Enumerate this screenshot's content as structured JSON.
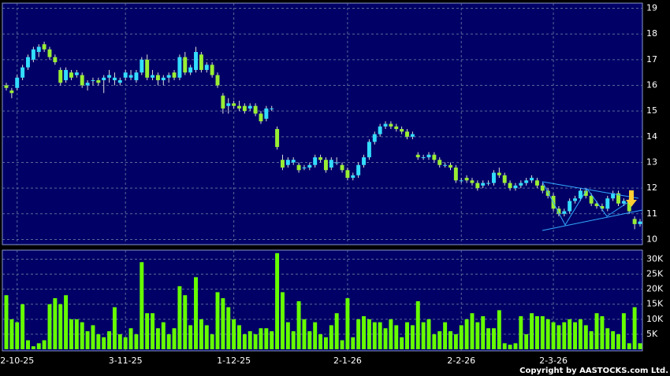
{
  "chart_data": {
    "type": "candlestick",
    "ohlc": [
      [
        16.0,
        16.1,
        15.8,
        15.9
      ],
      [
        15.8,
        15.9,
        15.5,
        15.7
      ],
      [
        15.9,
        16.4,
        15.8,
        16.3
      ],
      [
        16.3,
        16.8,
        16.2,
        16.7
      ],
      [
        16.7,
        17.2,
        16.6,
        17.1
      ],
      [
        17.0,
        17.5,
        16.9,
        17.4
      ],
      [
        17.3,
        17.6,
        17.1,
        17.5
      ],
      [
        17.6,
        17.7,
        17.3,
        17.4
      ],
      [
        17.4,
        17.5,
        17.0,
        17.1
      ],
      [
        17.1,
        17.2,
        16.8,
        16.9
      ],
      [
        16.6,
        16.7,
        16.0,
        16.1
      ],
      [
        16.2,
        16.7,
        16.1,
        16.6
      ],
      [
        16.5,
        16.6,
        16.2,
        16.3
      ],
      [
        16.4,
        16.6,
        16.3,
        16.5
      ],
      [
        16.4,
        16.5,
        15.9,
        16.0
      ],
      [
        16.0,
        16.2,
        15.8,
        16.1
      ],
      [
        16.2,
        16.3,
        16.0,
        16.2
      ],
      [
        16.2,
        16.3,
        16.0,
        16.1
      ],
      [
        16.2,
        16.4,
        15.7,
        16.3
      ],
      [
        16.3,
        16.6,
        16.1,
        16.4
      ],
      [
        16.2,
        16.5,
        16.0,
        16.3
      ],
      [
        16.1,
        16.3,
        16.0,
        16.2
      ],
      [
        16.3,
        16.6,
        16.2,
        16.5
      ],
      [
        16.3,
        16.6,
        16.2,
        16.4
      ],
      [
        16.2,
        16.6,
        16.1,
        16.5
      ],
      [
        16.5,
        17.1,
        16.4,
        17.0
      ],
      [
        17.0,
        17.2,
        16.2,
        16.3
      ],
      [
        16.3,
        16.6,
        16.2,
        16.4
      ],
      [
        16.4,
        16.5,
        16.0,
        16.2
      ],
      [
        16.2,
        16.4,
        16.0,
        16.3
      ],
      [
        16.3,
        16.5,
        16.1,
        16.4
      ],
      [
        16.5,
        16.6,
        16.2,
        16.3
      ],
      [
        16.3,
        17.2,
        16.2,
        17.1
      ],
      [
        17.1,
        17.3,
        16.4,
        16.5
      ],
      [
        16.5,
        16.8,
        16.4,
        16.7
      ],
      [
        16.6,
        17.5,
        16.5,
        17.3
      ],
      [
        17.2,
        17.3,
        16.5,
        16.6
      ],
      [
        16.6,
        16.9,
        16.5,
        16.8
      ],
      [
        16.8,
        16.9,
        16.3,
        16.4
      ],
      [
        16.4,
        16.5,
        15.9,
        16.0
      ],
      [
        15.6,
        15.7,
        14.9,
        15.1
      ],
      [
        15.2,
        15.5,
        14.9,
        15.3
      ],
      [
        15.3,
        15.4,
        15.1,
        15.2
      ],
      [
        15.2,
        15.4,
        15.0,
        15.1
      ],
      [
        15.2,
        15.3,
        14.9,
        15.0
      ],
      [
        15.1,
        15.3,
        15.0,
        15.2
      ],
      [
        15.2,
        15.3,
        14.8,
        14.9
      ],
      [
        14.9,
        15.0,
        14.5,
        14.6
      ],
      [
        14.7,
        15.2,
        14.6,
        15.1
      ],
      [
        15.1,
        15.2,
        15.0,
        15.1
      ],
      [
        14.3,
        14.4,
        13.5,
        13.6
      ],
      [
        13.1,
        13.3,
        12.7,
        12.8
      ],
      [
        12.9,
        13.2,
        12.8,
        13.1
      ],
      [
        13.0,
        13.2,
        12.9,
        13.1
      ],
      [
        12.9,
        13.0,
        12.6,
        12.7
      ],
      [
        12.8,
        12.9,
        12.7,
        12.8
      ],
      [
        12.8,
        13.0,
        12.7,
        12.9
      ],
      [
        12.9,
        13.3,
        12.8,
        13.2
      ],
      [
        13.2,
        13.3,
        13.0,
        13.1
      ],
      [
        13.1,
        13.2,
        12.6,
        12.7
      ],
      [
        12.8,
        13.2,
        12.7,
        13.1
      ],
      [
        13.0,
        13.2,
        12.9,
        13.0
      ],
      [
        12.9,
        13.0,
        12.6,
        12.7
      ],
      [
        12.7,
        12.8,
        12.3,
        12.4
      ],
      [
        12.4,
        12.6,
        12.3,
        12.5
      ],
      [
        12.5,
        13.0,
        12.4,
        12.9
      ],
      [
        12.9,
        13.3,
        12.8,
        13.2
      ],
      [
        13.2,
        13.9,
        13.1,
        13.8
      ],
      [
        13.8,
        14.2,
        13.7,
        14.1
      ],
      [
        14.1,
        14.5,
        14.0,
        14.4
      ],
      [
        14.4,
        14.6,
        14.3,
        14.5
      ],
      [
        14.5,
        14.6,
        14.3,
        14.4
      ],
      [
        14.4,
        14.5,
        14.2,
        14.3
      ],
      [
        14.3,
        14.4,
        14.1,
        14.2
      ],
      [
        14.2,
        14.3,
        13.9,
        14.0
      ],
      [
        14.0,
        14.2,
        13.9,
        14.1
      ],
      [
        13.3,
        13.4,
        13.1,
        13.2
      ],
      [
        13.2,
        13.3,
        13.1,
        13.2
      ],
      [
        13.2,
        13.4,
        13.1,
        13.3
      ],
      [
        13.3,
        13.4,
        13.0,
        13.1
      ],
      [
        13.1,
        13.2,
        12.8,
        12.9
      ],
      [
        12.9,
        13.0,
        12.8,
        12.9
      ],
      [
        12.9,
        13.0,
        12.7,
        12.8
      ],
      [
        12.8,
        12.9,
        12.2,
        12.3
      ],
      [
        12.3,
        12.4,
        12.2,
        12.3
      ],
      [
        12.4,
        12.5,
        12.2,
        12.3
      ],
      [
        12.3,
        12.4,
        12.1,
        12.2
      ],
      [
        12.2,
        12.3,
        11.9,
        12.0
      ],
      [
        12.1,
        12.3,
        12.0,
        12.2
      ],
      [
        12.2,
        12.3,
        12.1,
        12.2
      ],
      [
        12.2,
        12.7,
        12.1,
        12.6
      ],
      [
        12.6,
        12.8,
        12.4,
        12.5
      ],
      [
        12.5,
        12.6,
        12.1,
        12.2
      ],
      [
        12.2,
        12.3,
        11.9,
        12.0
      ],
      [
        12.0,
        12.2,
        11.9,
        12.1
      ],
      [
        12.1,
        12.3,
        12.0,
        12.2
      ],
      [
        12.2,
        12.4,
        12.1,
        12.3
      ],
      [
        12.3,
        12.5,
        12.2,
        12.4
      ],
      [
        12.3,
        12.4,
        12.0,
        12.1
      ],
      [
        12.1,
        12.2,
        11.8,
        11.9
      ],
      [
        11.9,
        12.0,
        11.6,
        11.7
      ],
      [
        11.7,
        11.8,
        11.1,
        11.2
      ],
      [
        11.2,
        11.3,
        10.9,
        11.0
      ],
      [
        11.0,
        11.2,
        10.9,
        11.1
      ],
      [
        11.1,
        11.6,
        11.0,
        11.5
      ],
      [
        11.5,
        11.7,
        11.4,
        11.6
      ],
      [
        11.6,
        12.0,
        11.5,
        11.9
      ],
      [
        11.9,
        12.0,
        11.6,
        11.7
      ],
      [
        11.7,
        11.8,
        11.3,
        11.4
      ],
      [
        11.4,
        11.5,
        11.2,
        11.3
      ],
      [
        11.3,
        11.4,
        11.1,
        11.2
      ],
      [
        11.2,
        11.7,
        11.1,
        11.6
      ],
      [
        11.6,
        11.9,
        11.5,
        11.8
      ],
      [
        11.8,
        11.9,
        11.3,
        11.4
      ],
      [
        11.4,
        11.6,
        11.3,
        11.5
      ],
      [
        11.5,
        11.6,
        11.0,
        11.1
      ],
      [
        10.8,
        10.9,
        10.4,
        10.6
      ],
      [
        10.6,
        10.8,
        10.5,
        10.7
      ]
    ],
    "volume": [
      18000,
      10000,
      9000,
      15000,
      3000,
      1000,
      2000,
      3000,
      15000,
      17000,
      15000,
      18000,
      10000,
      10000,
      9000,
      6000,
      8000,
      5000,
      4000,
      6000,
      14000,
      5000,
      4000,
      7000,
      5000,
      29000,
      12000,
      12000,
      7000,
      9000,
      5000,
      7000,
      21000,
      18000,
      8000,
      24000,
      10000,
      8000,
      5000,
      19000,
      17000,
      14000,
      10000,
      8000,
      5000,
      6000,
      5000,
      7000,
      7000,
      6000,
      32000,
      19000,
      9000,
      6000,
      16000,
      10000,
      6000,
      9000,
      5000,
      4000,
      8000,
      12000,
      3000,
      17000,
      4000,
      10000,
      11000,
      10000,
      9000,
      9000,
      7000,
      10000,
      8000,
      4000,
      9000,
      8000,
      16000,
      9000,
      10000,
      5000,
      6000,
      9000,
      6000,
      5000,
      8000,
      10000,
      12000,
      9000,
      11000,
      7000,
      7000,
      13000,
      2000,
      1500,
      2000,
      11000,
      5000,
      12000,
      11000,
      11000,
      10000,
      9000,
      8000,
      9000,
      10000,
      9000,
      10000,
      8000,
      6000,
      12000,
      11000,
      7000,
      6000,
      5000,
      12000,
      2000,
      14000,
      2000
    ],
    "up_color": "#33ddff",
    "down_color": "#99ee33",
    "volume_color": "#66ff00",
    "ylim": [
      9.8,
      19.2
    ],
    "yticks": [
      10,
      11,
      12,
      13,
      14,
      15,
      16,
      17,
      18,
      19
    ],
    "y2lim": [
      0,
      33000
    ],
    "y2ticks": [
      {
        "value": 5000,
        "label": "5K"
      },
      {
        "value": 10000,
        "label": "10K"
      },
      {
        "value": 15000,
        "label": "15K"
      },
      {
        "value": 20000,
        "label": "20K"
      },
      {
        "value": 25000,
        "label": "25K"
      },
      {
        "value": 30000,
        "label": "30K"
      }
    ],
    "xticks": [
      {
        "value": 2,
        "label": "2-10-25"
      },
      {
        "value": 22,
        "label": "3-11-25"
      },
      {
        "value": 42,
        "label": "1-12-25"
      },
      {
        "value": 63,
        "label": "2-1-26"
      },
      {
        "value": 84,
        "label": "2-2-26"
      },
      {
        "value": 101,
        "label": "2-3-26"
      }
    ],
    "grid": true,
    "copyright": "Copyright by AASTOCKS.com Ltd."
  }
}
